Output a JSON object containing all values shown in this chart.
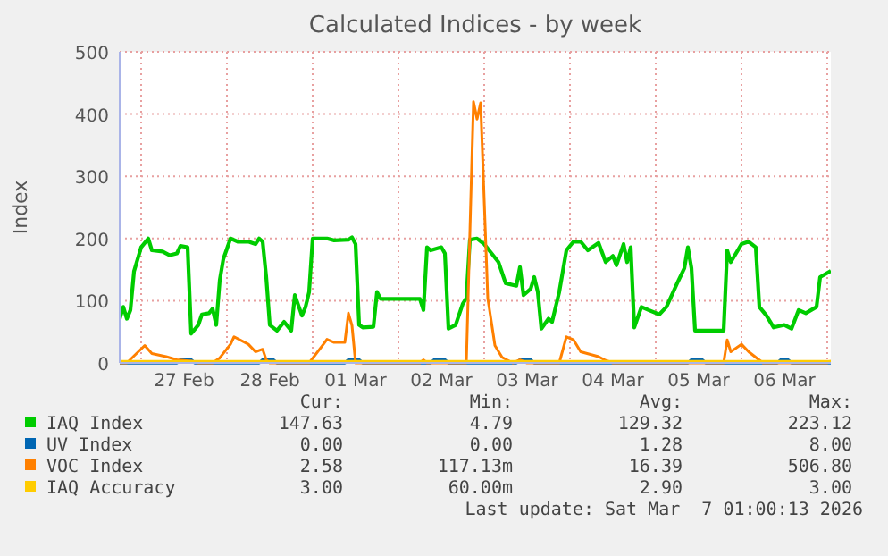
{
  "chart_data": {
    "type": "line",
    "title": "Calculated Indices - by week",
    "ylabel": "Index",
    "xlim": [
      "2026-02-26T18:00",
      "2026-03-07T01:00"
    ],
    "xticks": [
      {
        "value": "2026-02-27T00:00",
        "label": null
      },
      {
        "value": "2026-02-27T12:00",
        "label": "27 Feb"
      },
      {
        "value": "2026-02-28T00:00",
        "label": null
      },
      {
        "value": "2026-02-28T12:00",
        "label": "28 Feb"
      },
      {
        "value": "2026-03-01T00:00",
        "label": null
      },
      {
        "value": "2026-03-01T12:00",
        "label": "01 Mar"
      },
      {
        "value": "2026-03-02T00:00",
        "label": null
      },
      {
        "value": "2026-03-02T12:00",
        "label": "02 Mar"
      },
      {
        "value": "2026-03-03T00:00",
        "label": null
      },
      {
        "value": "2026-03-03T12:00",
        "label": "03 Mar"
      },
      {
        "value": "2026-03-04T00:00",
        "label": null
      },
      {
        "value": "2026-03-04T12:00",
        "label": "04 Mar"
      },
      {
        "value": "2026-03-05T00:00",
        "label": null
      },
      {
        "value": "2026-03-05T12:00",
        "label": "05 Mar"
      },
      {
        "value": "2026-03-06T00:00",
        "label": null
      },
      {
        "value": "2026-03-06T12:00",
        "label": "06 Mar"
      },
      {
        "value": "2026-03-07T00:00",
        "label": null
      }
    ],
    "ylim": [
      0,
      500
    ],
    "yticks": [
      0,
      100,
      200,
      300,
      400,
      500
    ],
    "grid": true,
    "legend": "bottom",
    "series": [
      {
        "name": "IAQ Index",
        "color": "#00cc00",
        "x": [
          "2026-02-26T18:00",
          "2026-02-26T19:00",
          "2026-02-26T20:00",
          "2026-02-26T21:00",
          "2026-02-26T22:00",
          "2026-02-27T00:00",
          "2026-02-27T02:00",
          "2026-02-27T03:00",
          "2026-02-27T06:00",
          "2026-02-27T08:00",
          "2026-02-27T10:00",
          "2026-02-27T11:00",
          "2026-02-27T13:00",
          "2026-02-27T14:00",
          "2026-02-27T16:00",
          "2026-02-27T17:00",
          "2026-02-27T19:00",
          "2026-02-27T20:00",
          "2026-02-27T21:00",
          "2026-02-27T22:00",
          "2026-02-27T23:00",
          "2026-02-28T01:00",
          "2026-02-28T03:00",
          "2026-02-28T06:00",
          "2026-02-28T08:00",
          "2026-02-28T09:00",
          "2026-02-28T10:00",
          "2026-02-28T11:00",
          "2026-02-28T12:00",
          "2026-02-28T14:00",
          "2026-02-28T16:00",
          "2026-02-28T18:00",
          "2026-02-28T19:00",
          "2026-02-28T21:00",
          "2026-02-28T22:00",
          "2026-02-28T23:00",
          "2026-03-01T00:00",
          "2026-03-01T04:00",
          "2026-03-01T06:00",
          "2026-03-01T10:00",
          "2026-03-01T11:00",
          "2026-03-01T12:00",
          "2026-03-01T13:00",
          "2026-03-01T14:00",
          "2026-03-01T17:00",
          "2026-03-01T18:00",
          "2026-03-01T19:00",
          "2026-03-01T21:00",
          "2026-03-02T06:00",
          "2026-03-02T07:00",
          "2026-03-02T08:00",
          "2026-03-02T09:00",
          "2026-03-02T12:00",
          "2026-03-02T13:00",
          "2026-03-02T14:00",
          "2026-03-02T16:00",
          "2026-03-02T18:00",
          "2026-03-02T19:00",
          "2026-03-02T20:00",
          "2026-03-02T22:00",
          "2026-03-03T00:00",
          "2026-03-03T04:00",
          "2026-03-03T06:00",
          "2026-03-03T09:00",
          "2026-03-03T10:00",
          "2026-03-03T11:00",
          "2026-03-03T13:00",
          "2026-03-03T14:00",
          "2026-03-03T15:00",
          "2026-03-03T16:00",
          "2026-03-03T18:00",
          "2026-03-03T19:00",
          "2026-03-03T21:00",
          "2026-03-03T23:00",
          "2026-03-04T01:00",
          "2026-03-04T03:00",
          "2026-03-04T05:00",
          "2026-03-04T08:00",
          "2026-03-04T10:00",
          "2026-03-04T12:00",
          "2026-03-04T13:00",
          "2026-03-04T15:00",
          "2026-03-04T16:00",
          "2026-03-04T17:00",
          "2026-03-04T18:00",
          "2026-03-04T20:00",
          "2026-03-04T22:00",
          "2026-03-05T01:00",
          "2026-03-05T03:00",
          "2026-03-05T06:00",
          "2026-03-05T08:00",
          "2026-03-05T09:00",
          "2026-03-05T10:00",
          "2026-03-05T11:00",
          "2026-03-05T19:00",
          "2026-03-05T20:00",
          "2026-03-05T21:00",
          "2026-03-06T00:00",
          "2026-03-06T02:00",
          "2026-03-06T04:00",
          "2026-03-06T05:00",
          "2026-03-06T07:00",
          "2026-03-06T09:00",
          "2026-03-06T12:00",
          "2026-03-06T14:00",
          "2026-03-06T16:00",
          "2026-03-06T18:00",
          "2026-03-06T21:00",
          "2026-03-06T22:00",
          "2026-03-07T01:00"
        ],
        "values": [
          71,
          90,
          71,
          85,
          147,
          186,
          200,
          181,
          179,
          173,
          176,
          188,
          186,
          47,
          61,
          78,
          80,
          87,
          61,
          133,
          167,
          200,
          195,
          195,
          191,
          200,
          195,
          138,
          61,
          52,
          66,
          52,
          109,
          76,
          90,
          114,
          200,
          200,
          197,
          198,
          202,
          191,
          61,
          57,
          58,
          114,
          103,
          103,
          103,
          85,
          186,
          181,
          186,
          176,
          55,
          61,
          95,
          104,
          198,
          200,
          191,
          162,
          128,
          124,
          154,
          109,
          119,
          138,
          114,
          55,
          71,
          66,
          114,
          181,
          195,
          195,
          181,
          193,
          162,
          172,
          157,
          191,
          162,
          186,
          57,
          90,
          85,
          78,
          90,
          128,
          152,
          186,
          152,
          52,
          52,
          181,
          162,
          191,
          195,
          186,
          90,
          76,
          57,
          61,
          55,
          85,
          80,
          90,
          138,
          148
        ]
      },
      {
        "name": "UV Index",
        "color": "#0066b3",
        "x": [
          "2026-02-26T18:00",
          "2026-02-27T10:00",
          "2026-02-27T11:00",
          "2026-02-27T14:00",
          "2026-02-27T15:00",
          "2026-02-28T09:00",
          "2026-02-28T10:00",
          "2026-02-28T13:00",
          "2026-02-28T14:00",
          "2026-03-01T09:00",
          "2026-03-01T10:00",
          "2026-03-01T13:00",
          "2026-03-01T14:00",
          "2026-03-02T09:00",
          "2026-03-02T10:00",
          "2026-03-02T13:00",
          "2026-03-02T14:00",
          "2026-03-03T09:00",
          "2026-03-03T10:00",
          "2026-03-03T13:00",
          "2026-03-03T14:00",
          "2026-03-05T09:00",
          "2026-03-05T10:00",
          "2026-03-05T13:00",
          "2026-03-05T14:00",
          "2026-03-06T10:00",
          "2026-03-06T11:00",
          "2026-03-06T13:00",
          "2026-03-06T14:00",
          "2026-03-07T01:00"
        ],
        "values": [
          0,
          0,
          5,
          5,
          0,
          0,
          5,
          5,
          0,
          0,
          5,
          5,
          0,
          0,
          5,
          5,
          0,
          0,
          5,
          5,
          0,
          0,
          5,
          5,
          0,
          0,
          5,
          5,
          0,
          0
        ]
      },
      {
        "name": "VOC Index",
        "color": "#ff8000",
        "x": [
          "2026-02-26T18:00",
          "2026-02-26T20:00",
          "2026-02-27T01:00",
          "2026-02-27T03:00",
          "2026-02-27T07:00",
          "2026-02-27T10:00",
          "2026-02-27T14:00",
          "2026-02-27T16:00",
          "2026-02-27T20:00",
          "2026-02-27T22:00",
          "2026-02-28T01:00",
          "2026-02-28T02:00",
          "2026-02-28T06:00",
          "2026-02-28T08:00",
          "2026-02-28T10:00",
          "2026-02-28T11:00",
          "2026-02-28T12:00",
          "2026-02-28T23:00",
          "2026-03-01T03:00",
          "2026-03-01T04:00",
          "2026-03-01T06:00",
          "2026-03-01T09:00",
          "2026-03-01T10:00",
          "2026-03-01T11:00",
          "2026-03-01T12:00",
          "2026-03-02T06:00",
          "2026-03-02T07:00",
          "2026-03-02T08:00",
          "2026-03-02T19:00",
          "2026-03-02T21:00",
          "2026-03-02T22:00",
          "2026-03-02T23:00",
          "2026-03-03T01:00",
          "2026-03-03T03:00",
          "2026-03-03T05:00",
          "2026-03-03T08:00",
          "2026-03-03T10:00",
          "2026-03-03T12:00",
          "2026-03-03T21:00",
          "2026-03-03T23:00",
          "2026-03-04T01:00",
          "2026-03-04T03:00",
          "2026-03-04T08:00",
          "2026-03-04T10:00",
          "2026-03-04T12:00",
          "2026-03-05T19:00",
          "2026-03-05T20:00",
          "2026-03-05T21:00",
          "2026-03-06T00:00",
          "2026-03-06T02:00",
          "2026-03-06T04:00",
          "2026-03-06T06:00",
          "2026-03-07T00:00",
          "2026-03-07T01:00"
        ],
        "values": [
          0,
          0,
          28,
          15,
          10,
          5,
          3,
          0,
          0,
          8,
          30,
          42,
          30,
          18,
          22,
          5,
          0,
          0,
          30,
          38,
          33,
          33,
          80,
          60,
          0,
          0,
          5,
          0,
          0,
          420,
          392,
          418,
          104,
          28,
          9,
          0,
          5,
          0,
          0,
          42,
          37,
          18,
          10,
          4,
          0,
          0,
          37,
          18,
          30,
          18,
          9,
          0,
          0,
          3
        ]
      },
      {
        "name": "IAQ Accuracy",
        "color": "#ffcc00",
        "x": [
          "2026-02-26T18:00",
          "2026-03-07T01:00"
        ],
        "values": [
          3,
          3
        ]
      }
    ],
    "annotations": [
      "Cur:",
      "Min:",
      "Avg:",
      "Max:",
      "147.63",
      "4.79",
      "129.32",
      "223.12",
      "0.00",
      "0.00",
      "1.28",
      "8.00",
      "2.58",
      "117.13m",
      "16.39",
      "506.80",
      "3.00",
      "60.00m",
      "2.90",
      "3.00",
      "Last update: Sat Mar  7 01:00:13 2026"
    ]
  }
}
